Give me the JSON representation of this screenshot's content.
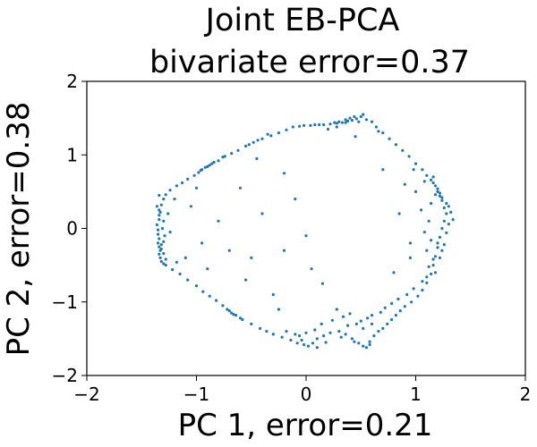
{
  "chart_data": {
    "type": "scatter",
    "title_line1": "Joint EB-PCA",
    "title_line2": "bivariate error=0.37",
    "xlabel": "PC 1, error=0.21",
    "ylabel": "PC 2, error=0.38",
    "xlim": [
      -2,
      2
    ],
    "ylim": [
      -2,
      2
    ],
    "xticks": [
      -2,
      -1,
      0,
      1,
      2
    ],
    "yticks": [
      -2,
      -1,
      0,
      1,
      2
    ],
    "xtick_labels": [
      "−2",
      "−1",
      "0",
      "1",
      "2"
    ],
    "ytick_labels": [
      "−2",
      "−1",
      "0",
      "1",
      "2"
    ],
    "grid": false,
    "marker_color": "#1f77b4",
    "points": [
      [
        -0.02,
        1.4
      ],
      [
        0.08,
        1.41
      ],
      [
        0.16,
        1.41
      ],
      [
        0.22,
        1.42
      ],
      [
        0.28,
        1.43
      ],
      [
        0.33,
        1.44
      ],
      [
        0.38,
        1.46
      ],
      [
        0.42,
        1.47
      ],
      [
        0.46,
        1.49
      ],
      [
        0.4,
        1.5
      ],
      [
        0.36,
        1.48
      ],
      [
        0.3,
        1.45
      ],
      [
        0.26,
        1.44
      ],
      [
        0.12,
        1.41
      ],
      [
        0.04,
        1.4
      ],
      [
        -0.06,
        1.39
      ],
      [
        -0.12,
        1.38
      ],
      [
        0.5,
        1.52
      ],
      [
        0.52,
        1.55
      ],
      [
        0.55,
        1.48
      ],
      [
        0.44,
        1.52
      ],
      [
        0.36,
        1.44
      ],
      [
        0.48,
        1.45
      ],
      [
        -0.18,
        1.34
      ],
      [
        -0.25,
        1.3
      ],
      [
        -0.32,
        1.26
      ],
      [
        -0.4,
        1.22
      ],
      [
        -0.48,
        1.17
      ],
      [
        -0.55,
        1.12
      ],
      [
        -0.62,
        1.06
      ],
      [
        -0.68,
        1.02
      ],
      [
        -0.74,
        0.98
      ],
      [
        -0.8,
        0.92
      ],
      [
        -0.86,
        0.88
      ],
      [
        -0.9,
        0.84
      ],
      [
        -0.95,
        0.8
      ],
      [
        -0.98,
        0.76
      ],
      [
        -1.02,
        0.72
      ],
      [
        -1.08,
        0.67
      ],
      [
        -1.13,
        0.62
      ],
      [
        -0.84,
        0.9
      ],
      [
        -0.88,
        0.86
      ],
      [
        -0.92,
        0.83
      ],
      [
        -0.96,
        0.79
      ],
      [
        -0.76,
        0.97
      ],
      [
        -0.52,
        1.14
      ],
      [
        -0.44,
        1.2
      ],
      [
        -1.18,
        0.58
      ],
      [
        -1.24,
        0.52
      ],
      [
        -1.28,
        0.46
      ],
      [
        -1.3,
        0.4
      ],
      [
        -1.32,
        0.32
      ],
      [
        -1.34,
        0.25
      ],
      [
        -1.34,
        0.18
      ],
      [
        -1.34,
        0.12
      ],
      [
        -1.36,
        0.05
      ],
      [
        -1.35,
        -0.02
      ],
      [
        -1.35,
        -0.08
      ],
      [
        -1.34,
        -0.14
      ],
      [
        -1.35,
        -0.2
      ],
      [
        -1.34,
        -0.25
      ],
      [
        -1.33,
        -0.3
      ],
      [
        -1.34,
        -0.35
      ],
      [
        -1.33,
        -0.4
      ],
      [
        -1.32,
        -0.45
      ],
      [
        -1.3,
        -0.48
      ],
      [
        -1.28,
        -0.5
      ],
      [
        -1.32,
        -0.22
      ],
      [
        -1.3,
        -0.18
      ],
      [
        -1.32,
        -0.28
      ],
      [
        -1.3,
        -0.34
      ],
      [
        -1.28,
        -0.42
      ],
      [
        -1.36,
        0.3
      ],
      [
        -1.33,
        0.22
      ],
      [
        -1.3,
        0.1
      ],
      [
        -1.31,
        0.0
      ],
      [
        -1.29,
        -0.1
      ],
      [
        -1.34,
        0.45
      ],
      [
        -1.22,
        -0.56
      ],
      [
        -1.15,
        -0.62
      ],
      [
        -1.08,
        -0.7
      ],
      [
        -1.0,
        -0.78
      ],
      [
        -0.94,
        -0.86
      ],
      [
        -0.88,
        -0.92
      ],
      [
        -0.82,
        -0.98
      ],
      [
        -0.76,
        -1.05
      ],
      [
        -0.72,
        -1.1
      ],
      [
        -0.68,
        -1.15
      ],
      [
        -0.64,
        -1.18
      ],
      [
        -0.6,
        -1.22
      ],
      [
        -0.7,
        -1.12
      ],
      [
        -0.66,
        -1.17
      ],
      [
        -0.58,
        -1.24
      ],
      [
        -0.5,
        -1.3
      ],
      [
        -0.42,
        -1.36
      ],
      [
        -0.36,
        -1.4
      ],
      [
        -0.3,
        -1.44
      ],
      [
        -0.22,
        -1.48
      ],
      [
        -0.14,
        -1.52
      ],
      [
        -0.08,
        -1.56
      ],
      [
        -0.02,
        -1.58
      ],
      [
        0.02,
        -1.6
      ],
      [
        0.06,
        -1.56
      ],
      [
        0.1,
        -1.5
      ],
      [
        0.16,
        -1.46
      ],
      [
        0.22,
        -1.42
      ],
      [
        0.3,
        -1.4
      ],
      [
        0.36,
        -1.44
      ],
      [
        0.42,
        -1.5
      ],
      [
        0.48,
        -1.56
      ],
      [
        0.52,
        -1.6
      ],
      [
        0.55,
        -1.62
      ],
      [
        0.58,
        -1.54
      ],
      [
        0.62,
        -1.46
      ],
      [
        0.66,
        -1.4
      ],
      [
        0.7,
        -1.36
      ],
      [
        0.74,
        -1.3
      ],
      [
        0.78,
        -1.24
      ],
      [
        0.82,
        -1.18
      ],
      [
        0.86,
        -1.12
      ],
      [
        0.9,
        -1.06
      ],
      [
        0.96,
        -1.0
      ],
      [
        1.02,
        -0.92
      ],
      [
        1.06,
        -0.84
      ],
      [
        1.1,
        -0.74
      ],
      [
        1.14,
        -0.62
      ],
      [
        1.16,
        -0.5
      ],
      [
        1.18,
        -0.38
      ],
      [
        1.2,
        -0.26
      ],
      [
        1.22,
        -0.12
      ],
      [
        1.24,
        0.0
      ],
      [
        1.26,
        0.1
      ],
      [
        1.28,
        0.2
      ],
      [
        1.3,
        0.3
      ],
      [
        1.32,
        0.22
      ],
      [
        1.34,
        0.12
      ],
      [
        1.28,
        0.34
      ],
      [
        1.24,
        0.42
      ],
      [
        1.22,
        0.48
      ],
      [
        1.2,
        0.54
      ],
      [
        1.18,
        0.58
      ],
      [
        1.16,
        0.62
      ],
      [
        1.14,
        0.66
      ],
      [
        1.1,
        0.72
      ],
      [
        1.06,
        0.8
      ],
      [
        1.0,
        0.88
      ],
      [
        0.94,
        0.98
      ],
      [
        0.88,
        1.06
      ],
      [
        0.82,
        1.14
      ],
      [
        0.76,
        1.22
      ],
      [
        0.7,
        1.3
      ],
      [
        0.64,
        1.38
      ],
      [
        1.2,
        0.5
      ],
      [
        1.22,
        0.44
      ],
      [
        1.24,
        0.38
      ],
      [
        1.18,
        0.46
      ],
      [
        1.26,
        0.28
      ],
      [
        1.3,
        0.06
      ],
      [
        1.28,
        -0.06
      ],
      [
        1.2,
        -0.2
      ],
      [
        1.24,
        -0.3
      ],
      [
        1.16,
        -0.42
      ],
      [
        1.12,
        -0.52
      ],
      [
        1.18,
        -0.6
      ],
      [
        1.1,
        -0.66
      ],
      [
        1.06,
        -0.72
      ],
      [
        0.98,
        -0.82
      ],
      [
        0.92,
        -0.9
      ],
      [
        0.84,
        -0.96
      ],
      [
        0.78,
        -1.02
      ],
      [
        0.72,
        -1.08
      ],
      [
        0.68,
        -1.14
      ],
      [
        0.6,
        -1.18
      ],
      [
        0.56,
        -1.22
      ],
      [
        0.5,
        -1.26
      ],
      [
        0.46,
        -1.3
      ],
      [
        0.38,
        -1.32
      ],
      [
        0.34,
        -1.2
      ],
      [
        0.28,
        -1.1
      ],
      [
        0.24,
        -1.25
      ],
      [
        0.14,
        -1.3
      ],
      [
        0.08,
        -1.38
      ],
      [
        0.0,
        -1.42
      ],
      [
        -0.06,
        -1.46
      ],
      [
        0.4,
        -1.16
      ],
      [
        0.52,
        -1.36
      ],
      [
        0.6,
        -1.3
      ],
      [
        -0.5,
        -0.4
      ],
      [
        -0.3,
        -0.9
      ],
      [
        -0.2,
        -0.3
      ],
      [
        0.0,
        -0.1
      ],
      [
        -0.6,
        0.55
      ],
      [
        -0.4,
        0.2
      ],
      [
        -0.2,
        0.75
      ],
      [
        -0.45,
        0.95
      ],
      [
        0.05,
        -0.55
      ],
      [
        0.15,
        -0.75
      ],
      [
        -0.7,
        -0.3
      ],
      [
        -0.8,
        0.1
      ],
      [
        -1.05,
        0.3
      ],
      [
        -1.1,
        -0.4
      ],
      [
        -0.9,
        -0.55
      ],
      [
        0.85,
        0.2
      ],
      [
        0.95,
        -0.2
      ],
      [
        1.0,
        0.5
      ],
      [
        0.7,
        0.8
      ],
      [
        0.45,
        1.25
      ],
      [
        0.2,
        1.35
      ],
      [
        -0.1,
        0.4
      ],
      [
        -0.55,
        -0.7
      ],
      [
        -0.25,
        -1.1
      ],
      [
        0.8,
        -0.6
      ],
      [
        0.95,
        -0.4
      ],
      [
        1.05,
        0.25
      ],
      [
        0.9,
        0.6
      ],
      [
        1.08,
        -0.05
      ],
      [
        -0.95,
        -0.2
      ],
      [
        -1.0,
        0.55
      ],
      [
        0.28,
        1.38
      ],
      [
        -0.35,
        1.28
      ],
      [
        0.6,
        1.45
      ],
      [
        0.66,
        1.32
      ],
      [
        0.58,
        -1.58
      ],
      [
        0.44,
        -1.54
      ],
      [
        0.32,
        -1.48
      ],
      [
        0.18,
        -1.55
      ],
      [
        0.1,
        -1.62
      ],
      [
        -0.04,
        -1.52
      ],
      [
        -0.1,
        -1.44
      ],
      [
        -0.18,
        -1.4
      ],
      [
        1.12,
        0.1
      ],
      [
        1.14,
        -0.16
      ],
      [
        1.22,
        -0.4
      ],
      [
        1.1,
        -0.3
      ],
      [
        1.26,
        -0.22
      ],
      [
        1.14,
        0.34
      ],
      [
        1.16,
        0.7
      ],
      [
        1.08,
        0.64
      ],
      [
        0.98,
        0.8
      ],
      [
        -1.2,
        0.4
      ],
      [
        -1.24,
        -0.05
      ],
      [
        -1.26,
        0.2
      ],
      [
        -1.18,
        -0.46
      ]
    ]
  }
}
